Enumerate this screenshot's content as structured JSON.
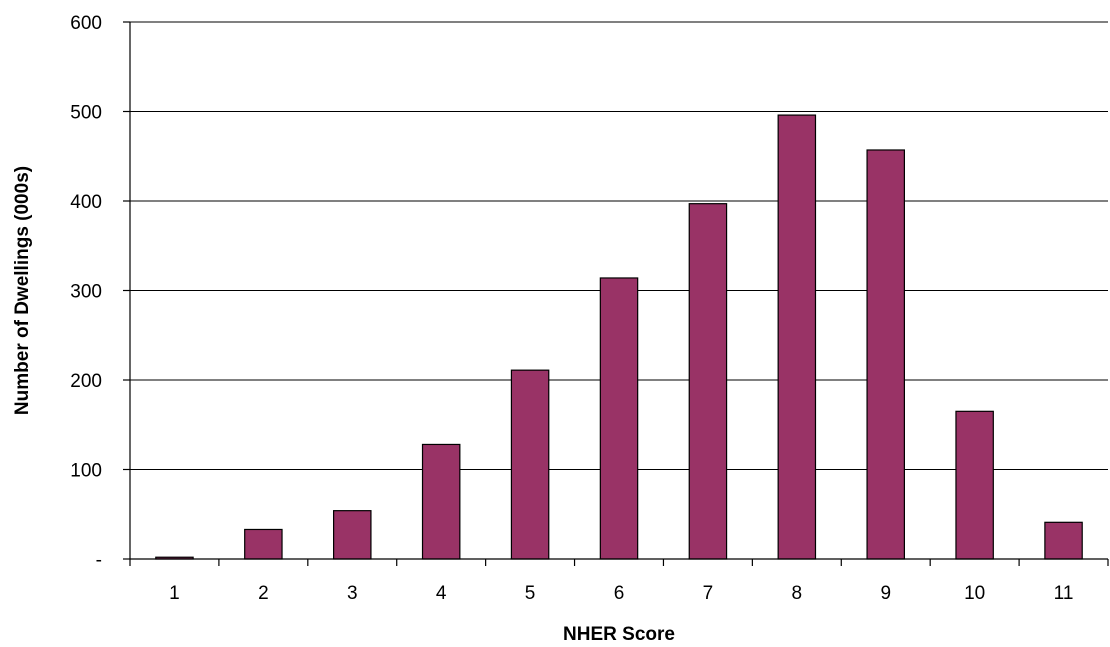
{
  "chart_data": {
    "type": "bar",
    "title": "",
    "xlabel": "NHER Score",
    "ylabel": "Number of Dwellings (000s)",
    "categories": [
      "1",
      "2",
      "3",
      "4",
      "5",
      "6",
      "7",
      "8",
      "9",
      "10",
      "11"
    ],
    "values": [
      2,
      33,
      54,
      128,
      211,
      314,
      397,
      496,
      457,
      165,
      41
    ],
    "ylim": [
      0,
      600
    ],
    "yticks": [
      0,
      100,
      200,
      300,
      400,
      500,
      600
    ],
    "ytick_labels": [
      "-",
      "100",
      "200",
      "300",
      "400",
      "500",
      "600"
    ],
    "grid": true,
    "legend": "none",
    "bar_color": "#993366",
    "bar_edge_color": "#000000"
  }
}
